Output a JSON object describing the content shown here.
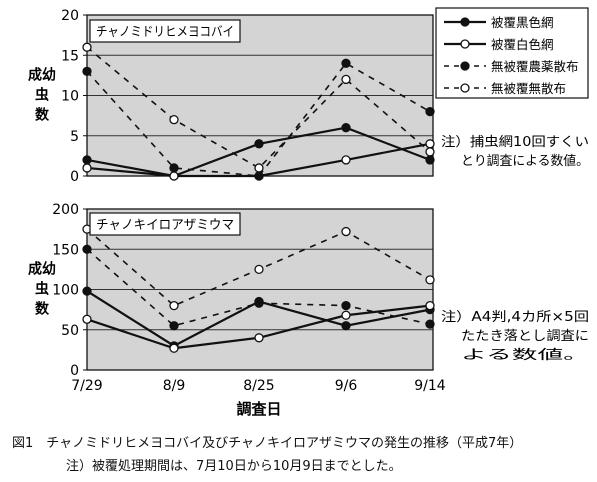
{
  "legend": [
    {
      "label": "被覆黒色網",
      "style": "solid",
      "marker": "filled"
    },
    {
      "label": "被覆白色網",
      "style": "solid",
      "marker": "open"
    },
    {
      "label": "無被覆農薬散布",
      "style": "dashed",
      "marker": "filled"
    },
    {
      "label": "無被覆無散布",
      "style": "dashed",
      "marker": "open"
    }
  ],
  "colors": {
    "plot_bg": "#d4d4d4",
    "line": "#111111",
    "grid": "#333333",
    "frame": "#111111"
  },
  "xlabel": "調査日",
  "caption": {
    "title": "図1　チャノミドリヒメヨコバイ及びチャノキイロアザミウマの発生の推移（平成7年）",
    "note": "注）被覆処理期間は、7月10日から10月9日までとした。"
  },
  "chart_data": [
    {
      "type": "line",
      "title": "チャノミドリヒメヨコバイ",
      "ylabel": "成幼虫数",
      "ylim": [
        0,
        20
      ],
      "yticks": [
        0,
        5,
        10,
        15,
        20
      ],
      "grid": true,
      "categories": [
        "7/29",
        "8/9",
        "8/25",
        "9/6",
        "9/14"
      ],
      "note": [
        "注）捕虫網10回すくい",
        "とり調査による数値。"
      ],
      "series": [
        {
          "name": "被覆黒色網",
          "values": [
            2,
            0,
            4,
            6,
            2
          ]
        },
        {
          "name": "被覆白色網",
          "values": [
            1,
            0,
            0,
            2,
            4
          ]
        },
        {
          "name": "無被覆農薬散布",
          "values": [
            13,
            1,
            0,
            14,
            8
          ]
        },
        {
          "name": "無被覆無散布",
          "values": [
            16,
            7,
            1,
            12,
            3
          ]
        }
      ]
    },
    {
      "type": "line",
      "title": "チャノキイロアザミウマ",
      "ylabel": "成幼虫数",
      "ylim": [
        0,
        200
      ],
      "yticks": [
        0,
        50,
        100,
        150,
        200
      ],
      "grid": true,
      "categories": [
        "7/29",
        "8/9",
        "8/25",
        "9/6",
        "9/14"
      ],
      "note": [
        "注）A4判,4カ所×5回",
        "たたき落とし調査に",
        "よる数値。"
      ],
      "series": [
        {
          "name": "被覆黒色網",
          "values": [
            98,
            30,
            85,
            55,
            75
          ]
        },
        {
          "name": "被覆白色網",
          "values": [
            63,
            27,
            40,
            68,
            80
          ]
        },
        {
          "name": "無被覆農薬散布",
          "values": [
            150,
            55,
            83,
            80,
            57
          ]
        },
        {
          "name": "無被覆無散布",
          "values": [
            175,
            80,
            125,
            172,
            112
          ]
        }
      ]
    }
  ]
}
